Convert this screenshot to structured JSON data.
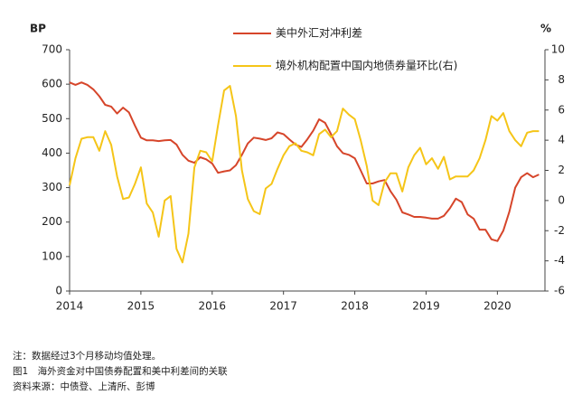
{
  "chart_data": {
    "type": "line",
    "y_label": "BP",
    "y2_label": "%",
    "legend": "top",
    "x": [
      2014,
      2014.083,
      2014.167,
      2014.25,
      2014.333,
      2014.417,
      2014.5,
      2014.583,
      2014.667,
      2014.75,
      2014.833,
      2014.917,
      2015,
      2015.083,
      2015.167,
      2015.25,
      2015.333,
      2015.417,
      2015.5,
      2015.583,
      2015.667,
      2015.75,
      2015.833,
      2015.917,
      2016,
      2016.083,
      2016.167,
      2016.25,
      2016.333,
      2016.417,
      2016.5,
      2016.583,
      2016.667,
      2016.75,
      2016.833,
      2016.917,
      2017,
      2017.083,
      2017.167,
      2017.25,
      2017.333,
      2017.417,
      2017.5,
      2017.583,
      2017.667,
      2017.75,
      2017.833,
      2017.917,
      2018,
      2018.083,
      2018.167,
      2018.25,
      2018.333,
      2018.417,
      2018.5,
      2018.583,
      2018.667,
      2018.75,
      2018.833,
      2018.917,
      2019,
      2019.083,
      2019.167,
      2019.25,
      2019.333,
      2019.417,
      2019.5,
      2019.583,
      2019.667,
      2019.75,
      2019.833,
      2019.917,
      2020,
      2020.083,
      2020.167,
      2020.25,
      2020.333,
      2020.417,
      2020.5,
      2020.583
    ],
    "series": [
      {
        "name": "美中外汇对冲利差",
        "color": "#d6452a",
        "axis": "y",
        "values": [
          605,
          598,
          605,
          598,
          585,
          565,
          540,
          535,
          515,
          532,
          518,
          480,
          445,
          437,
          437,
          435,
          437,
          438,
          425,
          395,
          378,
          372,
          388,
          382,
          370,
          343,
          347,
          350,
          365,
          395,
          428,
          445,
          442,
          438,
          443,
          460,
          455,
          440,
          425,
          418,
          440,
          465,
          498,
          488,
          455,
          420,
          400,
          395,
          385,
          350,
          312,
          312,
          318,
          322,
          290,
          265,
          228,
          222,
          215,
          215,
          213,
          210,
          210,
          218,
          240,
          268,
          258,
          222,
          210,
          178,
          178,
          150,
          145,
          175,
          230,
          300,
          330,
          342,
          330,
          338
        ]
      },
      {
        "name": "境外机构配置中国内地债券量环比(右)",
        "color": "#f5c518",
        "axis": "y2",
        "values": [
          1.0,
          2.8,
          4.1,
          4.2,
          4.2,
          3.3,
          4.6,
          3.7,
          1.6,
          0.1,
          0.2,
          1.1,
          2.2,
          -0.2,
          -0.8,
          -2.4,
          0.0,
          0.3,
          -3.2,
          -4.1,
          -2.2,
          2.2,
          3.3,
          3.2,
          2.6,
          5.0,
          7.3,
          7.6,
          5.6,
          2.0,
          0.1,
          -0.7,
          -0.9,
          0.8,
          1.1,
          2.1,
          3.0,
          3.6,
          3.8,
          3.3,
          3.2,
          3.0,
          4.4,
          4.7,
          4.2,
          4.6,
          6.1,
          5.7,
          5.4,
          4.0,
          2.3,
          0.0,
          -0.3,
          1.2,
          1.8,
          1.8,
          0.6,
          2.2,
          3.0,
          3.5,
          2.4,
          2.8,
          2.1,
          2.9,
          1.4,
          1.6,
          1.6,
          1.6,
          2.0,
          2.8,
          4.0,
          5.6,
          5.3,
          5.8,
          4.6,
          4.0,
          3.6,
          4.5,
          4.6,
          4.6
        ]
      }
    ],
    "xlim": [
      2014,
      2020.667
    ],
    "xticks": [
      2014,
      2015,
      2016,
      2017,
      2018,
      2019,
      2020
    ],
    "ylim": [
      0,
      700
    ],
    "yticks": [
      0,
      100,
      200,
      300,
      400,
      500,
      600,
      700
    ],
    "y2lim": [
      -6,
      10
    ],
    "y2ticks": [
      -6,
      -4,
      -2,
      0,
      2,
      4,
      6,
      8,
      10
    ],
    "notes": [
      "注：数据经过3个月移动均值处理。",
      "图1　海外资金对中国债券配置和美中利差间的关联",
      "资料来源：中债登、上清所、彭博"
    ]
  }
}
